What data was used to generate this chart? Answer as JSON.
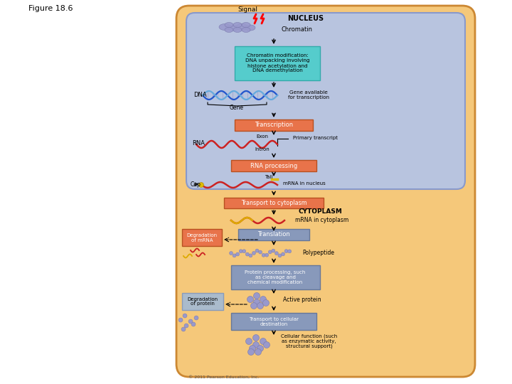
{
  "fig_label": "Figure 18.6",
  "bg_outer": "#f5c87a",
  "bg_nucleus": "#b8c4df",
  "nucleus_border": "#8899cc",
  "chromatin_box_color": "#55cccc",
  "transcription_box_color": "#e8734a",
  "rna_processing_box_color": "#e8734a",
  "transport_box_color": "#e8734a",
  "translation_box_color": "#8899bb",
  "protein_processing_box_color": "#8899bb",
  "transport2_box_color": "#8899bb",
  "degradation_mrna_box_color": "#e8734a",
  "degradation_protein_box_color": "#aabbcc",
  "signal_label": "Signal",
  "nucleus_label": "NUCLEUS",
  "chromatin_label": "Chromatin",
  "chromatin_mod_text": "Chromatin modification:\nDNA unpacking involving\nhistone acetylation and\nDNA demethylation",
  "dna_label": "DNA",
  "gene_label": "Gene",
  "gene_available_text": "Gene available\nfor transcription",
  "transcription_label": "Transcription",
  "rna_label": "RNA",
  "exon_label": "Exon",
  "primary_transcript_label": "Primary transcript",
  "intron_label": "Intron",
  "rna_processing_label": "RNA processing",
  "tail_label": "Tail",
  "mrna_nucleus_label": "mRNA in nucleus",
  "cap_label": "Cap",
  "transport_label": "Transport to cytoplasm",
  "cytoplasm_label": "CYTOPLASM",
  "mrna_cytoplasm_label": "mRNA in cytoplasm",
  "degradation_mrna_label": "Degradation\nof mRNA",
  "translation_label": "Translation",
  "polypeptide_label": "Polypeptide",
  "protein_processing_text": "Protein processing, such\nas cleavage and\nchemical modification",
  "active_protein_label": "Active protein",
  "degradation_protein_label": "Degradation\nof protein",
  "transport2_label": "Transport to cellular\ndestination",
  "cellular_function_text": "Cellular function (such\nas enzymatic activity,\nstructural support)",
  "copyright_text": "© 2011 Pearson Education, Inc."
}
